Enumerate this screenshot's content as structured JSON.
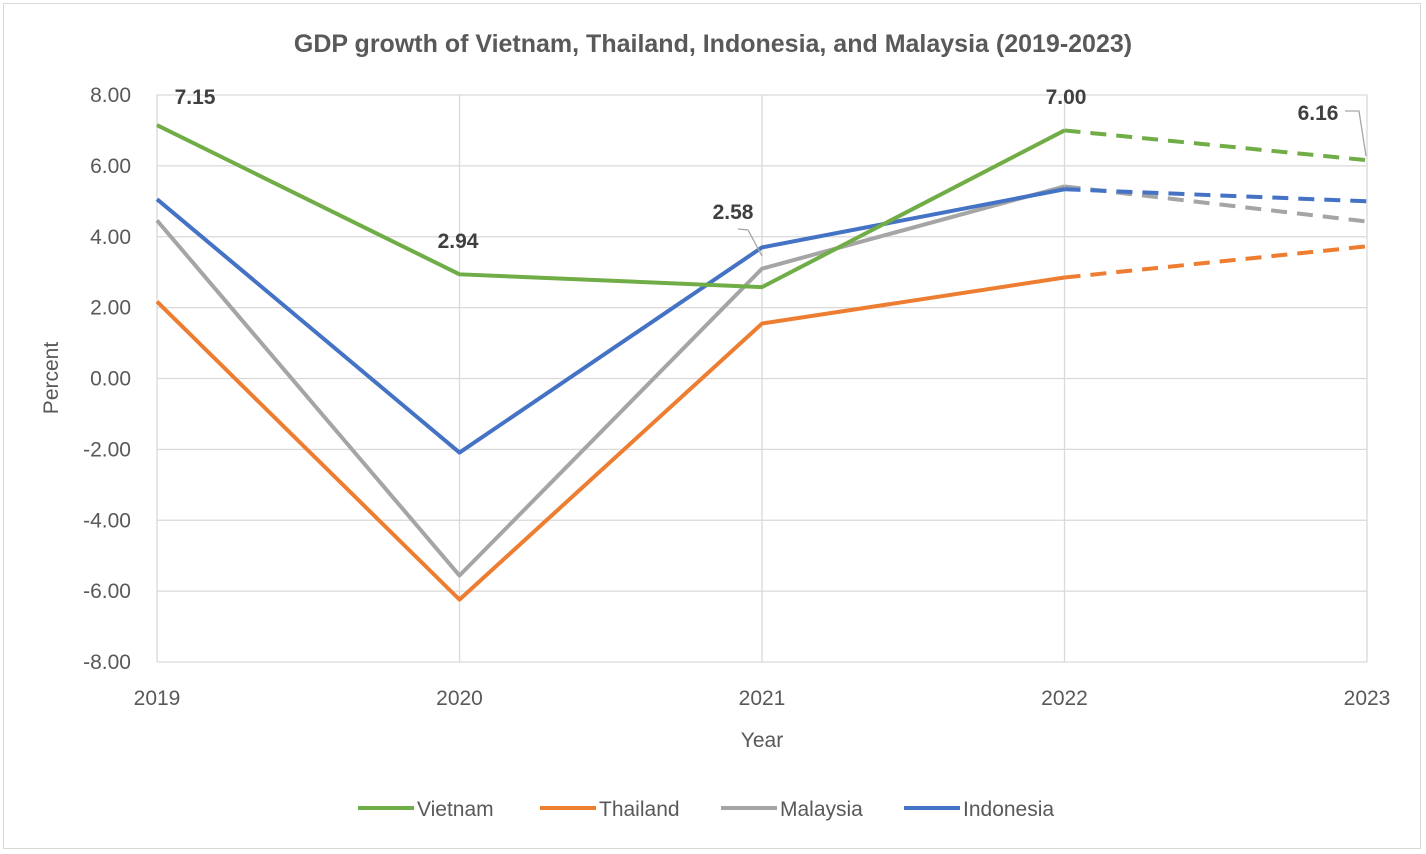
{
  "chart_data": {
    "type": "line",
    "title": "GDP growth of Vietnam, Thailand, Indonesia, and Malaysia (2019-2023)",
    "xlabel": "Year",
    "ylabel": "Percent",
    "x": [
      "2019",
      "2020",
      "2021",
      "2022",
      "2023"
    ],
    "ylim": [
      -8,
      8
    ],
    "yticks": [
      "8.00",
      "6.00",
      "4.00",
      "2.00",
      "0.00",
      "-2.00",
      "-4.00",
      "-6.00",
      "-8.00"
    ],
    "grid": true,
    "legend_position": "bottom",
    "projected_segment": "2022-2023 dashed",
    "series": [
      {
        "name": "Vietnam",
        "color": "#70ad47",
        "values": [
          7.15,
          2.94,
          2.58,
          7.0,
          6.16
        ],
        "labels": [
          "7.15",
          "2.94",
          "2.58",
          "7.00",
          "6.16"
        ]
      },
      {
        "name": "Thailand",
        "color": "#ed7d31",
        "values": [
          2.17,
          -6.24,
          1.55,
          2.85,
          3.73
        ]
      },
      {
        "name": "Malaysia",
        "color": "#a5a5a5",
        "values": [
          4.46,
          -5.56,
          3.1,
          5.42,
          4.43
        ]
      },
      {
        "name": "Indonesia",
        "color": "#4472c4",
        "values": [
          5.06,
          -2.09,
          3.7,
          5.34,
          5.0
        ]
      }
    ]
  }
}
